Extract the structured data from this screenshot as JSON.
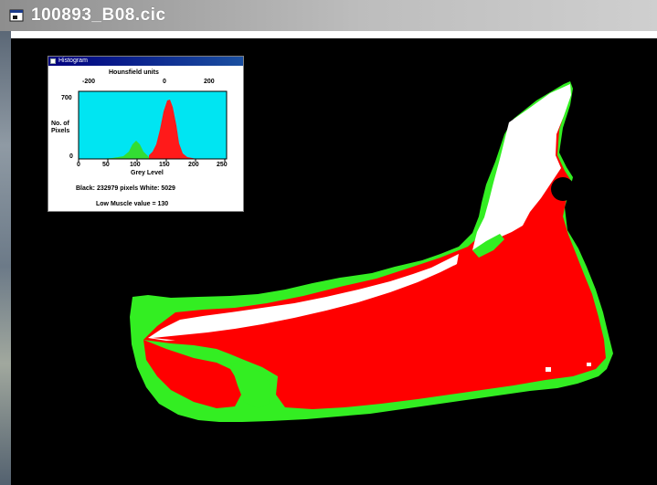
{
  "window": {
    "title": "100893_B08.cic",
    "icon": "window-app-icon"
  },
  "histogram": {
    "window_title": "Histogram",
    "top_axis_label": "Hounsfield units",
    "top_ticks": [
      "-200",
      "0",
      "200"
    ],
    "y_axis_label_line1": "No. of",
    "y_axis_label_line2": "Pixels",
    "y_max_tick": "700",
    "y_zero_tick": "0",
    "x_ticks": [
      "0",
      "50",
      "100",
      "150",
      "200",
      "250"
    ],
    "x_axis_label": "Grey Level",
    "counts_text": "Black: 232979 pixels   White: 5029",
    "threshold_text": "Low Muscle value = 130",
    "colors": {
      "background": "#00e5f2",
      "fat_peak": "#33dd33",
      "muscle_peak": "#ff1a1a"
    }
  },
  "scan": {
    "colors": {
      "background": "#000000",
      "fat": "#33ee22",
      "muscle": "#ff0000",
      "bone": "#ffffff"
    }
  }
}
